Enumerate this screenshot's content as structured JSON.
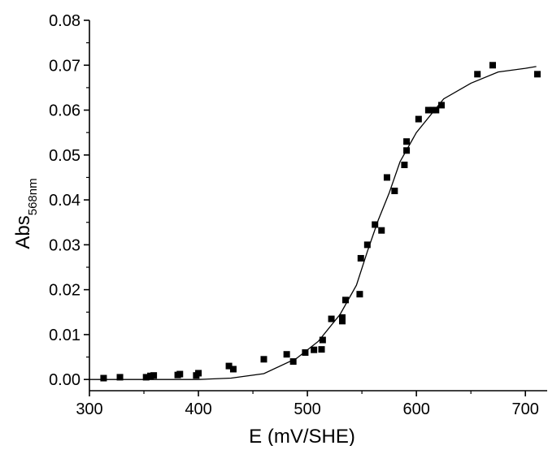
{
  "chart_data": {
    "type": "scatter",
    "xlabel": "E (mV/SHE)",
    "ylabel": {
      "main": "Abs",
      "subscript": "568nm"
    },
    "xlim": [
      300,
      720
    ],
    "ylim": [
      -0.0025,
      0.08
    ],
    "xticks": [
      300,
      400,
      500,
      600,
      700
    ],
    "xtick_labels": [
      "300",
      "400",
      "500",
      "600",
      "700"
    ],
    "yticks": [
      0.0,
      0.01,
      0.02,
      0.03,
      0.04,
      0.05,
      0.06,
      0.07,
      0.08
    ],
    "ytick_labels": [
      "0.00",
      "0.01",
      "0.02",
      "0.03",
      "0.04",
      "0.05",
      "0.06",
      "0.07",
      "0.08"
    ],
    "grid": false,
    "legend": "none",
    "marker": "filled-square",
    "color": "#000000",
    "series": [
      {
        "kind": "points",
        "x": [
          313,
          328,
          352,
          356,
          359,
          381,
          383,
          398,
          400,
          428,
          432,
          460,
          481,
          487,
          498,
          506,
          513,
          514,
          522,
          532,
          532,
          535,
          548,
          549,
          555,
          562,
          568,
          573,
          580,
          589,
          591,
          591,
          602,
          611,
          615,
          618,
          623,
          656,
          670,
          711
        ],
        "y": [
          0.0003,
          0.0005,
          0.0005,
          0.0008,
          0.0009,
          0.001,
          0.0012,
          0.0009,
          0.0014,
          0.003,
          0.0023,
          0.0045,
          0.0056,
          0.004,
          0.006,
          0.0066,
          0.0067,
          0.0088,
          0.0135,
          0.013,
          0.0138,
          0.0177,
          0.019,
          0.027,
          0.03,
          0.0345,
          0.0332,
          0.045,
          0.042,
          0.0478,
          0.051,
          0.053,
          0.058,
          0.06,
          0.06,
          0.06,
          0.0611,
          0.068,
          0.07,
          0.068
        ]
      },
      {
        "kind": "fit-line",
        "x": [
          300,
          350,
          400,
          430,
          460,
          490,
          510,
          530,
          545,
          555,
          565,
          575,
          585,
          600,
          625,
          650,
          675,
          700,
          710
        ],
        "y": [
          0.0,
          0.0,
          0.0,
          0.0003,
          0.0013,
          0.0047,
          0.0085,
          0.0145,
          0.021,
          0.0285,
          0.0355,
          0.0415,
          0.0485,
          0.055,
          0.0625,
          0.066,
          0.0685,
          0.0693,
          0.0697
        ]
      }
    ]
  }
}
